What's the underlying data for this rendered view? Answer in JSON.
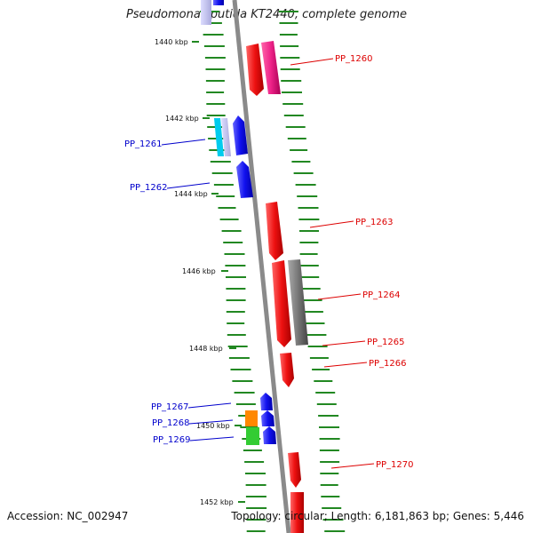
{
  "title": "Pseudomonas putida KT2440, complete genome",
  "accession": "Accession: NC_002947",
  "topology": "Topology: circular; Length: 6,181,863 bp; Genes: 5,446",
  "ruler": [
    "1440 kbp",
    "1442 kbp",
    "1444 kbp",
    "1446 kbp",
    "1448 kbp",
    "1450 kbp",
    "1452 kbp"
  ],
  "genes": [
    {
      "label": "PP_1260",
      "strand": "forward",
      "color": "#dd0000"
    },
    {
      "label": "PP_1261",
      "strand": "reverse",
      "color": "#0000cc"
    },
    {
      "label": "PP_1262",
      "strand": "reverse",
      "color": "#0000cc"
    },
    {
      "label": "PP_1263",
      "strand": "forward",
      "color": "#dd0000"
    },
    {
      "label": "PP_1264",
      "strand": "forward",
      "color": "#dd0000"
    },
    {
      "label": "PP_1265",
      "strand": "forward",
      "color": "#dd0000"
    },
    {
      "label": "PP_1266",
      "strand": "forward",
      "color": "#dd0000"
    },
    {
      "label": "PP_1267",
      "strand": "reverse",
      "color": "#0000cc"
    },
    {
      "label": "PP_1268",
      "strand": "reverse",
      "color": "#0000cc"
    },
    {
      "label": "PP_1269",
      "strand": "reverse",
      "color": "#0000cc"
    },
    {
      "label": "PP_1270",
      "strand": "forward",
      "color": "#dd0000"
    }
  ],
  "colors": {
    "forward_cds": "#ee1111",
    "reverse_cds": "#1111ee",
    "backbone": "#888888",
    "gc_dots": "#228822",
    "pink_feature": "#ee2288",
    "gray_feature": "#777777",
    "cyan_feature": "#00ccee",
    "orange_feature": "#ff8800",
    "green_feature": "#33cc33"
  }
}
